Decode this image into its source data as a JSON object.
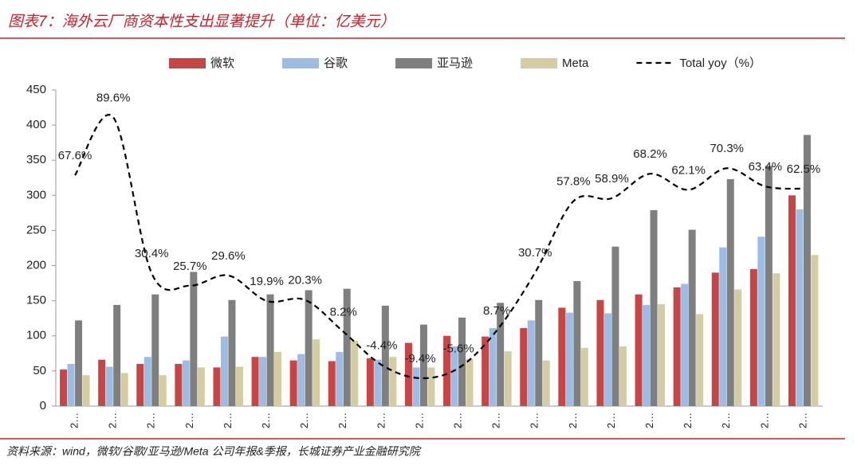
{
  "chart_data": {
    "type": "bar",
    "title": "图表7：海外云厂商资本性支出显著提升（单位：亿美元）",
    "source": "资料来源：wind，微软/谷歌/亚马逊/Meta 公司年报&季报，长城证券产业金融研究院",
    "categories": [
      "2…",
      "2…",
      "2…",
      "2…",
      "2…",
      "2…",
      "2…",
      "2…",
      "2…",
      "2…",
      "2…",
      "2…",
      "2…",
      "2…",
      "2…",
      "2…",
      "2…",
      "2…",
      "2…",
      "2…"
    ],
    "ylim": [
      0,
      450
    ],
    "yticks": [
      0,
      50,
      100,
      150,
      200,
      250,
      300,
      350,
      400,
      450
    ],
    "y2lim": [
      -20,
      100
    ],
    "series": [
      {
        "name": "微软",
        "color": "#c84545",
        "values": [
          52,
          66,
          60,
          60,
          55,
          70,
          65,
          64,
          68,
          90,
          100,
          99,
          111,
          140,
          151,
          159,
          169,
          190,
          195,
          300
        ]
      },
      {
        "name": "谷歌",
        "color": "#9dbce4",
        "values": [
          60,
          56,
          70,
          65,
          99,
          70,
          74,
          77,
          66,
          55,
          85,
          111,
          122,
          133,
          132,
          144,
          174,
          226,
          241,
          280
        ]
      },
      {
        "name": "亚马逊",
        "color": "#7f7f7f",
        "values": [
          122,
          144,
          159,
          191,
          151,
          159,
          165,
          167,
          143,
          116,
          126,
          147,
          151,
          178,
          227,
          279,
          251,
          323,
          342,
          386
        ]
      },
      {
        "name": "Meta",
        "color": "#d4cca2",
        "values": [
          44,
          47,
          44,
          55,
          56,
          77,
          95,
          93,
          70,
          55,
          67,
          78,
          65,
          83,
          85,
          145,
          131,
          166,
          189,
          215
        ]
      },
      {
        "name": "Total yoy（%）",
        "color": "#000000",
        "type": "line",
        "axis": "y2",
        "values": [
          67.6,
          89.6,
          30.4,
          25.7,
          29.6,
          19.9,
          20.3,
          8.2,
          -4.4,
          -9.4,
          -5.6,
          8.7,
          30.7,
          57.8,
          58.9,
          68.2,
          62.1,
          70.3,
          63.4,
          62.5
        ],
        "value_labels": [
          "67.6%",
          "89.6%",
          "30.4%",
          "25.7%",
          "29.6%",
          "19.9%",
          "20.3%",
          "8.2%",
          "-4.4%",
          "-9.4%",
          "-5.6%",
          "8.7%",
          "30.7%",
          "57.8%",
          "58.9%",
          "68.2%",
          "62.1%",
          "70.3%",
          "63.4%",
          "62.5%"
        ]
      }
    ]
  }
}
